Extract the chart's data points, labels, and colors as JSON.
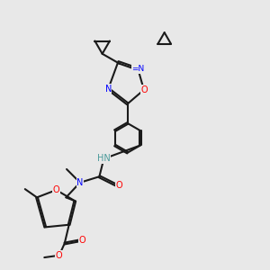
{
  "background_color": "#e8e8e8",
  "bond_color": "#1a1a1a",
  "atom_colors": {
    "N": "#0000ff",
    "O": "#ff0000",
    "H": "#4a9a9a",
    "C": "#1a1a1a"
  },
  "title": "",
  "figsize": [
    3.0,
    3.0
  ],
  "dpi": 100
}
